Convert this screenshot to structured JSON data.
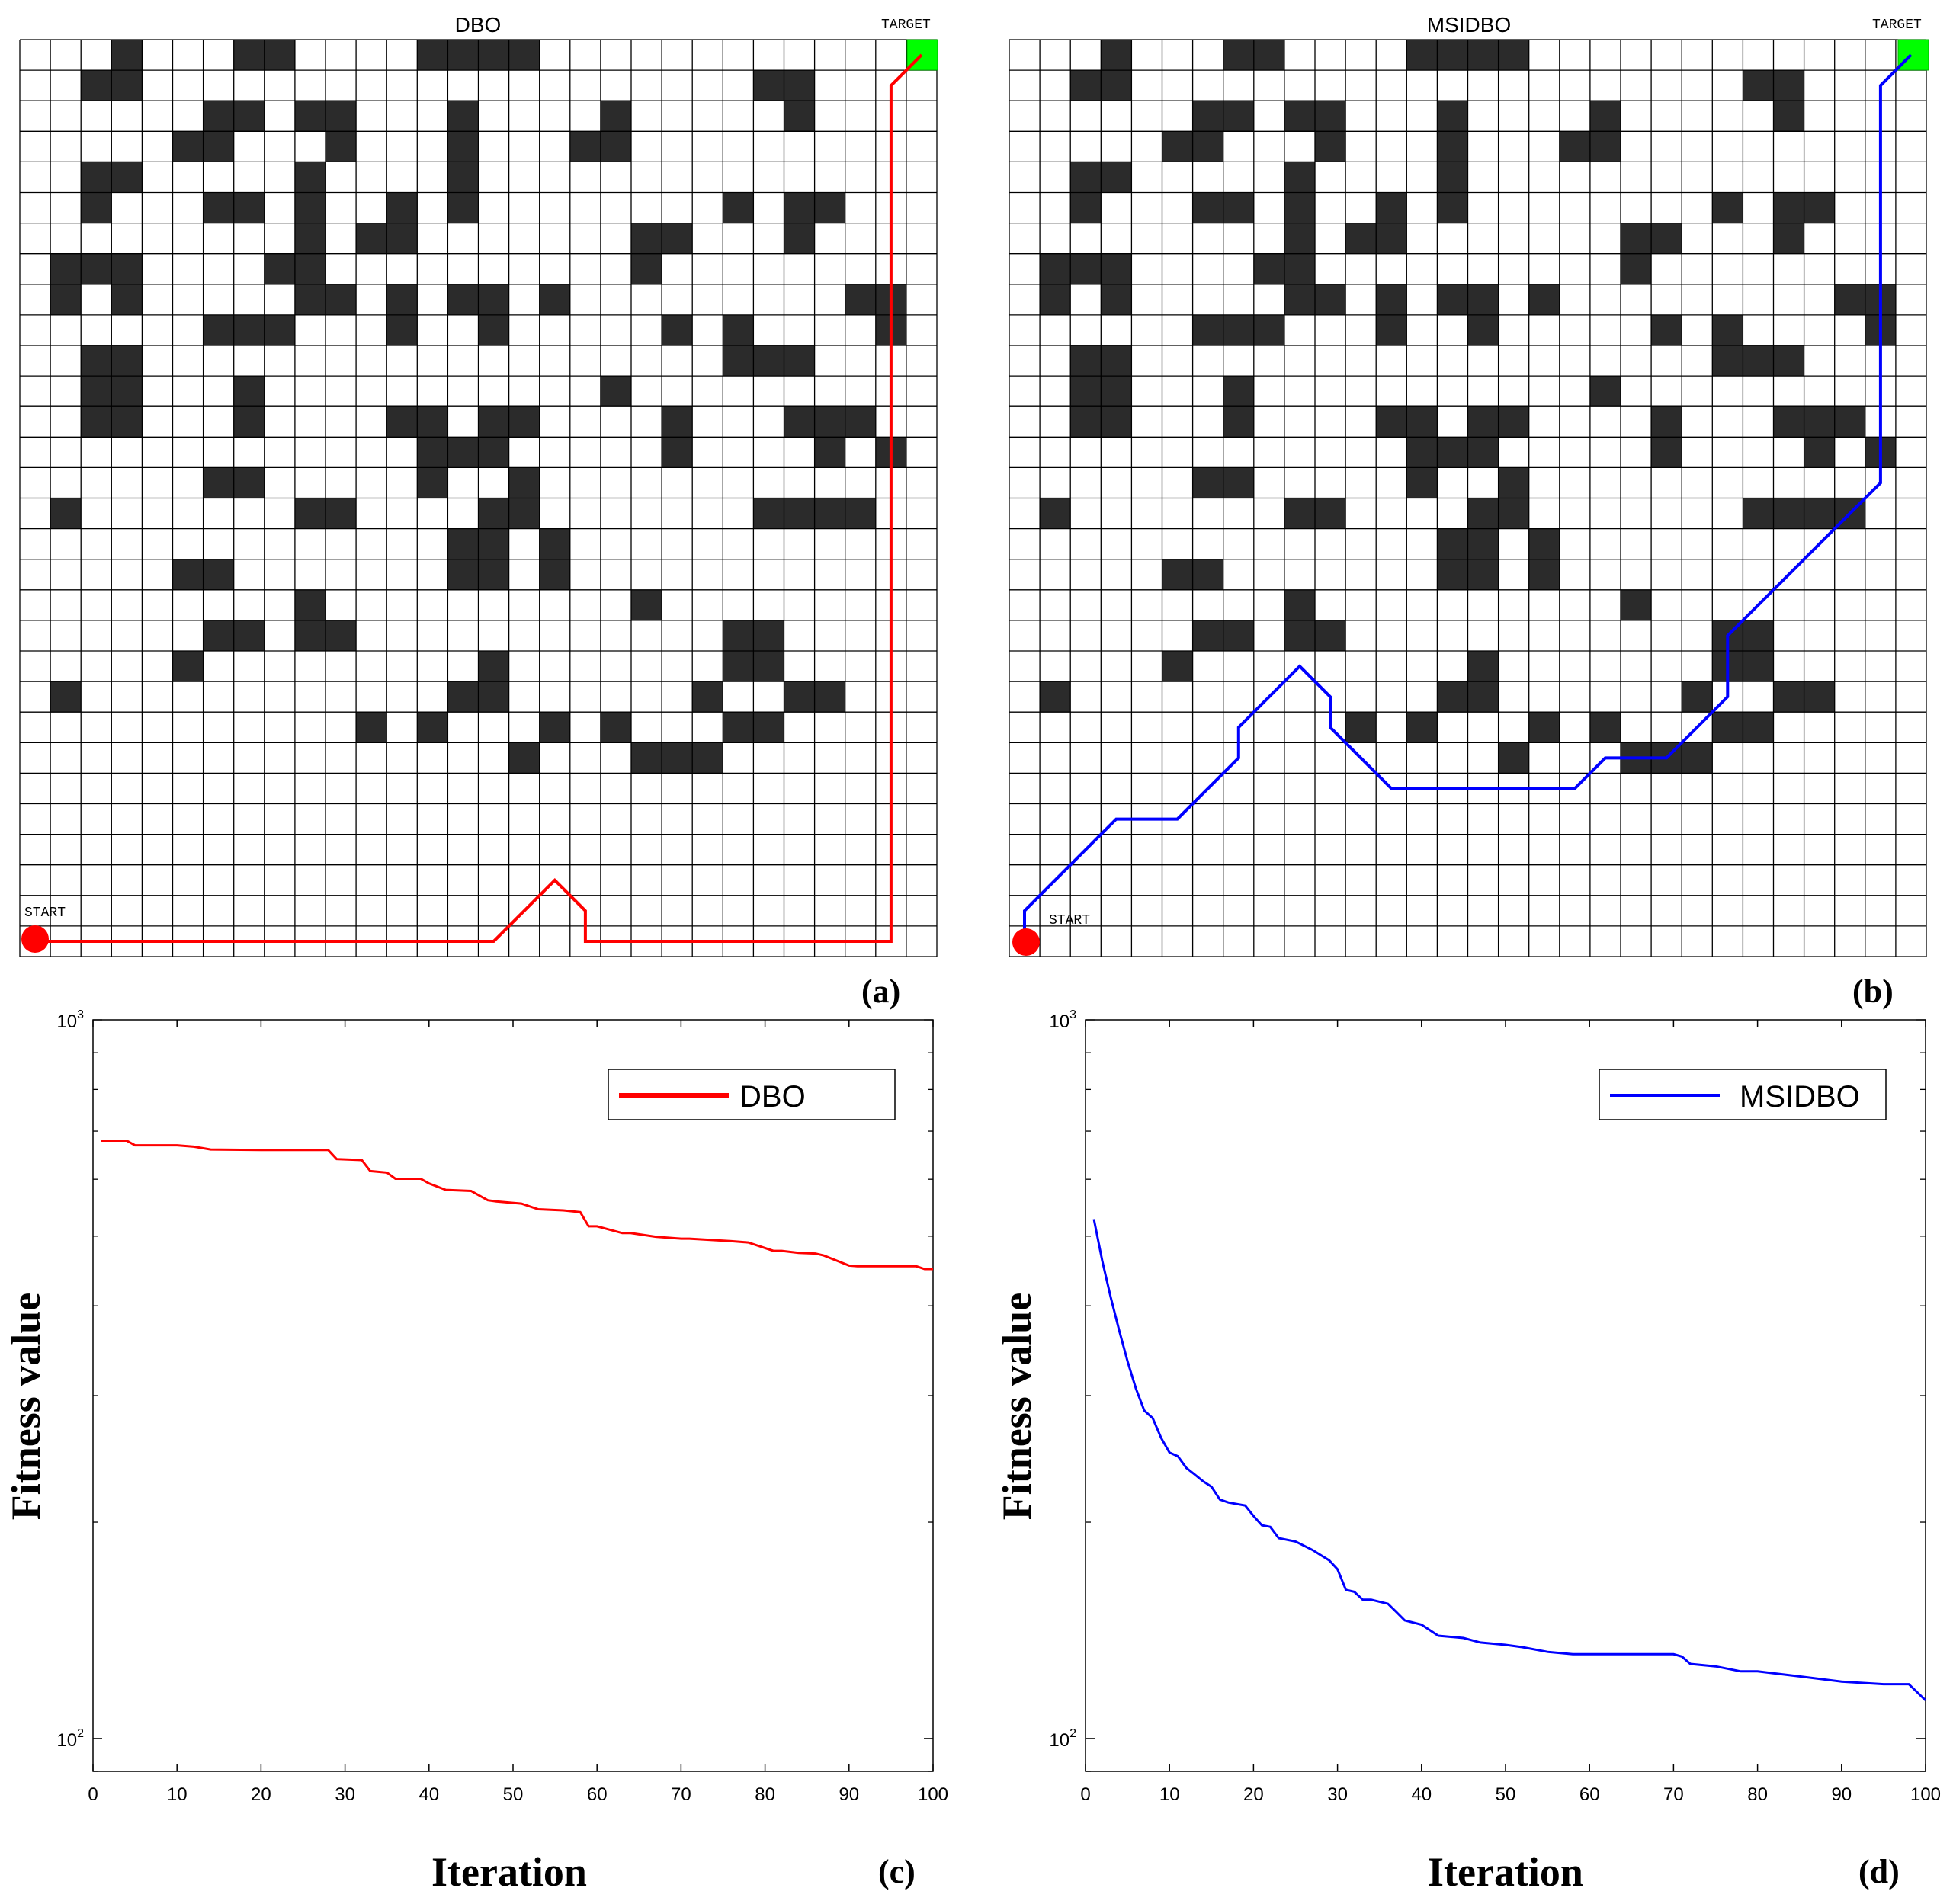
{
  "grid_panels": [
    {
      "panel_label": "(a)",
      "title": "DBO",
      "start_label": "START",
      "target_label": "TARGET",
      "path_color": "#ff0000",
      "path": [
        [
          0.5,
          0.5
        ],
        [
          15.5,
          0.5
        ],
        [
          17.5,
          2.5
        ],
        [
          18.5,
          1.5
        ],
        [
          18.5,
          0.5
        ],
        [
          28.5,
          0.5
        ],
        [
          28.5,
          28.5
        ],
        [
          29.5,
          29.5
        ]
      ]
    },
    {
      "panel_label": "(b)",
      "title": "MSIDBO",
      "start_label": "START",
      "target_label": "TARGET",
      "path_color": "#0000ff",
      "path": [
        [
          0.5,
          0.5
        ],
        [
          0.5,
          1.5
        ],
        [
          3.5,
          4.5
        ],
        [
          5.5,
          4.5
        ],
        [
          7.5,
          6.5
        ],
        [
          7.5,
          7.5
        ],
        [
          9.5,
          9.5
        ],
        [
          10.5,
          8.5
        ],
        [
          10.5,
          7.5
        ],
        [
          12.5,
          5.5
        ],
        [
          18.5,
          5.5
        ],
        [
          19.5,
          6.5
        ],
        [
          21.5,
          6.5
        ],
        [
          23.5,
          8.5
        ],
        [
          23.5,
          10.5
        ],
        [
          28.5,
          15.5
        ],
        [
          28.5,
          28.5
        ],
        [
          29.5,
          29.5
        ]
      ]
    }
  ],
  "obstacle_rows_top_to_bottom": [
    "000100011000011110000000000000",
    "001100000000000000000000110000",
    "000000110110001000010000010000",
    "000001100010001000110000000000",
    "001100000100001000000000000000",
    "001000110100101000000001011000",
    "000000000101100000001100010000",
    "011100001100000000001000000000",
    "010100000110101101000000000110",
    "000000111000100100000101000010",
    "001100000000000000000001110000",
    "001100010000000000010000000000",
    "001100010000110110000100011100",
    "000000000000011100000100001010",
    "000000110000010010000000000000",
    "010000000110000110000000111100",
    "000000000000001101000000000000",
    "000001100000001101000000000000",
    "000000000100000000001000000000",
    "000000110110000000000001100000",
    "000001000000000100000001100000",
    "010000000000001100000010011000",
    "000000000001010001010001100000",
    "000000000000000010001110000000",
    "000000000000000000000000000000",
    "000000000000000000000000000000",
    "000000000000000000000000000000",
    "000000000000000000000000000000",
    "000000000000000000000000000000",
    "000000000000000000000000000000"
  ],
  "chart_data": [
    {
      "type": "line",
      "panel_label": "(c)",
      "xlabel": "Iteration",
      "ylabel": "Fitness value",
      "yscale": "log",
      "xlim": [
        0,
        100
      ],
      "ylim": [
        90,
        1000
      ],
      "xticks": [
        0,
        10,
        20,
        30,
        40,
        50,
        60,
        70,
        80,
        90,
        100
      ],
      "xtick_labels": [
        "0",
        "10",
        "20",
        "30",
        "40",
        "50",
        "60",
        "70",
        "80",
        "90",
        "100"
      ],
      "ytick_labels": [
        {
          "value": 100,
          "base": "10",
          "exp": "2"
        },
        {
          "value": 1000,
          "base": "10",
          "exp": "3"
        }
      ],
      "legend": "top-right",
      "series": [
        {
          "name": "DBO",
          "color": "#ff0000",
          "x": [
            1,
            4,
            5,
            10,
            12,
            14,
            20,
            28,
            29,
            32,
            33,
            35,
            36,
            39,
            40,
            42,
            45,
            47,
            48,
            51,
            53,
            56,
            58,
            59,
            60,
            63,
            64,
            67,
            70,
            71,
            76,
            78,
            81,
            82,
            84,
            86,
            87,
            90,
            91,
            95,
            98,
            99,
            100
          ],
          "y": [
            679,
            679,
            669,
            669,
            666,
            660,
            659,
            659,
            640,
            638,
            616,
            613,
            601,
            601,
            592,
            580,
            578,
            561,
            559,
            555,
            545,
            543,
            540,
            516,
            516,
            505,
            505,
            499,
            496,
            496,
            492,
            490,
            477,
            477,
            474,
            473,
            470,
            455,
            454,
            454,
            454,
            450,
            450
          ]
        }
      ]
    },
    {
      "type": "line",
      "panel_label": "(d)",
      "xlabel": "Iteration",
      "ylabel": "Fitness value",
      "yscale": "log",
      "xlim": [
        0,
        100
      ],
      "ylim": [
        90,
        1000
      ],
      "xticks": [
        0,
        10,
        20,
        30,
        40,
        50,
        60,
        70,
        80,
        90,
        100
      ],
      "xtick_labels": [
        "0",
        "10",
        "20",
        "30",
        "40",
        "50",
        "60",
        "70",
        "80",
        "90",
        "100"
      ],
      "ytick_labels": [
        {
          "value": 100,
          "base": "10",
          "exp": "2"
        },
        {
          "value": 1000,
          "base": "10",
          "exp": "3"
        }
      ],
      "legend": "top-right",
      "series": [
        {
          "name": "MSIDBO",
          "color": "#0000ff",
          "x": [
            1,
            2,
            3,
            4,
            5,
            6,
            7,
            8,
            9,
            10,
            11,
            12,
            13,
            14,
            15,
            16,
            17,
            18,
            19,
            20,
            21,
            22,
            23,
            25,
            27,
            29,
            30,
            31,
            32,
            33,
            34,
            35,
            36,
            37,
            38,
            40,
            42,
            45,
            47,
            50,
            52,
            55,
            58,
            60,
            65,
            70,
            71,
            72,
            75,
            78,
            80,
            85,
            90,
            95,
            98,
            100
          ],
          "y": [
            528,
            462,
            411,
            370,
            335,
            307,
            286,
            279,
            262,
            250,
            247,
            238,
            233,
            228,
            224,
            215,
            213,
            212,
            211,
            204,
            198,
            197,
            190,
            188,
            183,
            177,
            172,
            161,
            160,
            156,
            156,
            155,
            154,
            150,
            146,
            144,
            139,
            138,
            136,
            135,
            134,
            132,
            131,
            131,
            131,
            131,
            130,
            127,
            126,
            124,
            124,
            122,
            120,
            119,
            119,
            113
          ]
        }
      ]
    }
  ]
}
